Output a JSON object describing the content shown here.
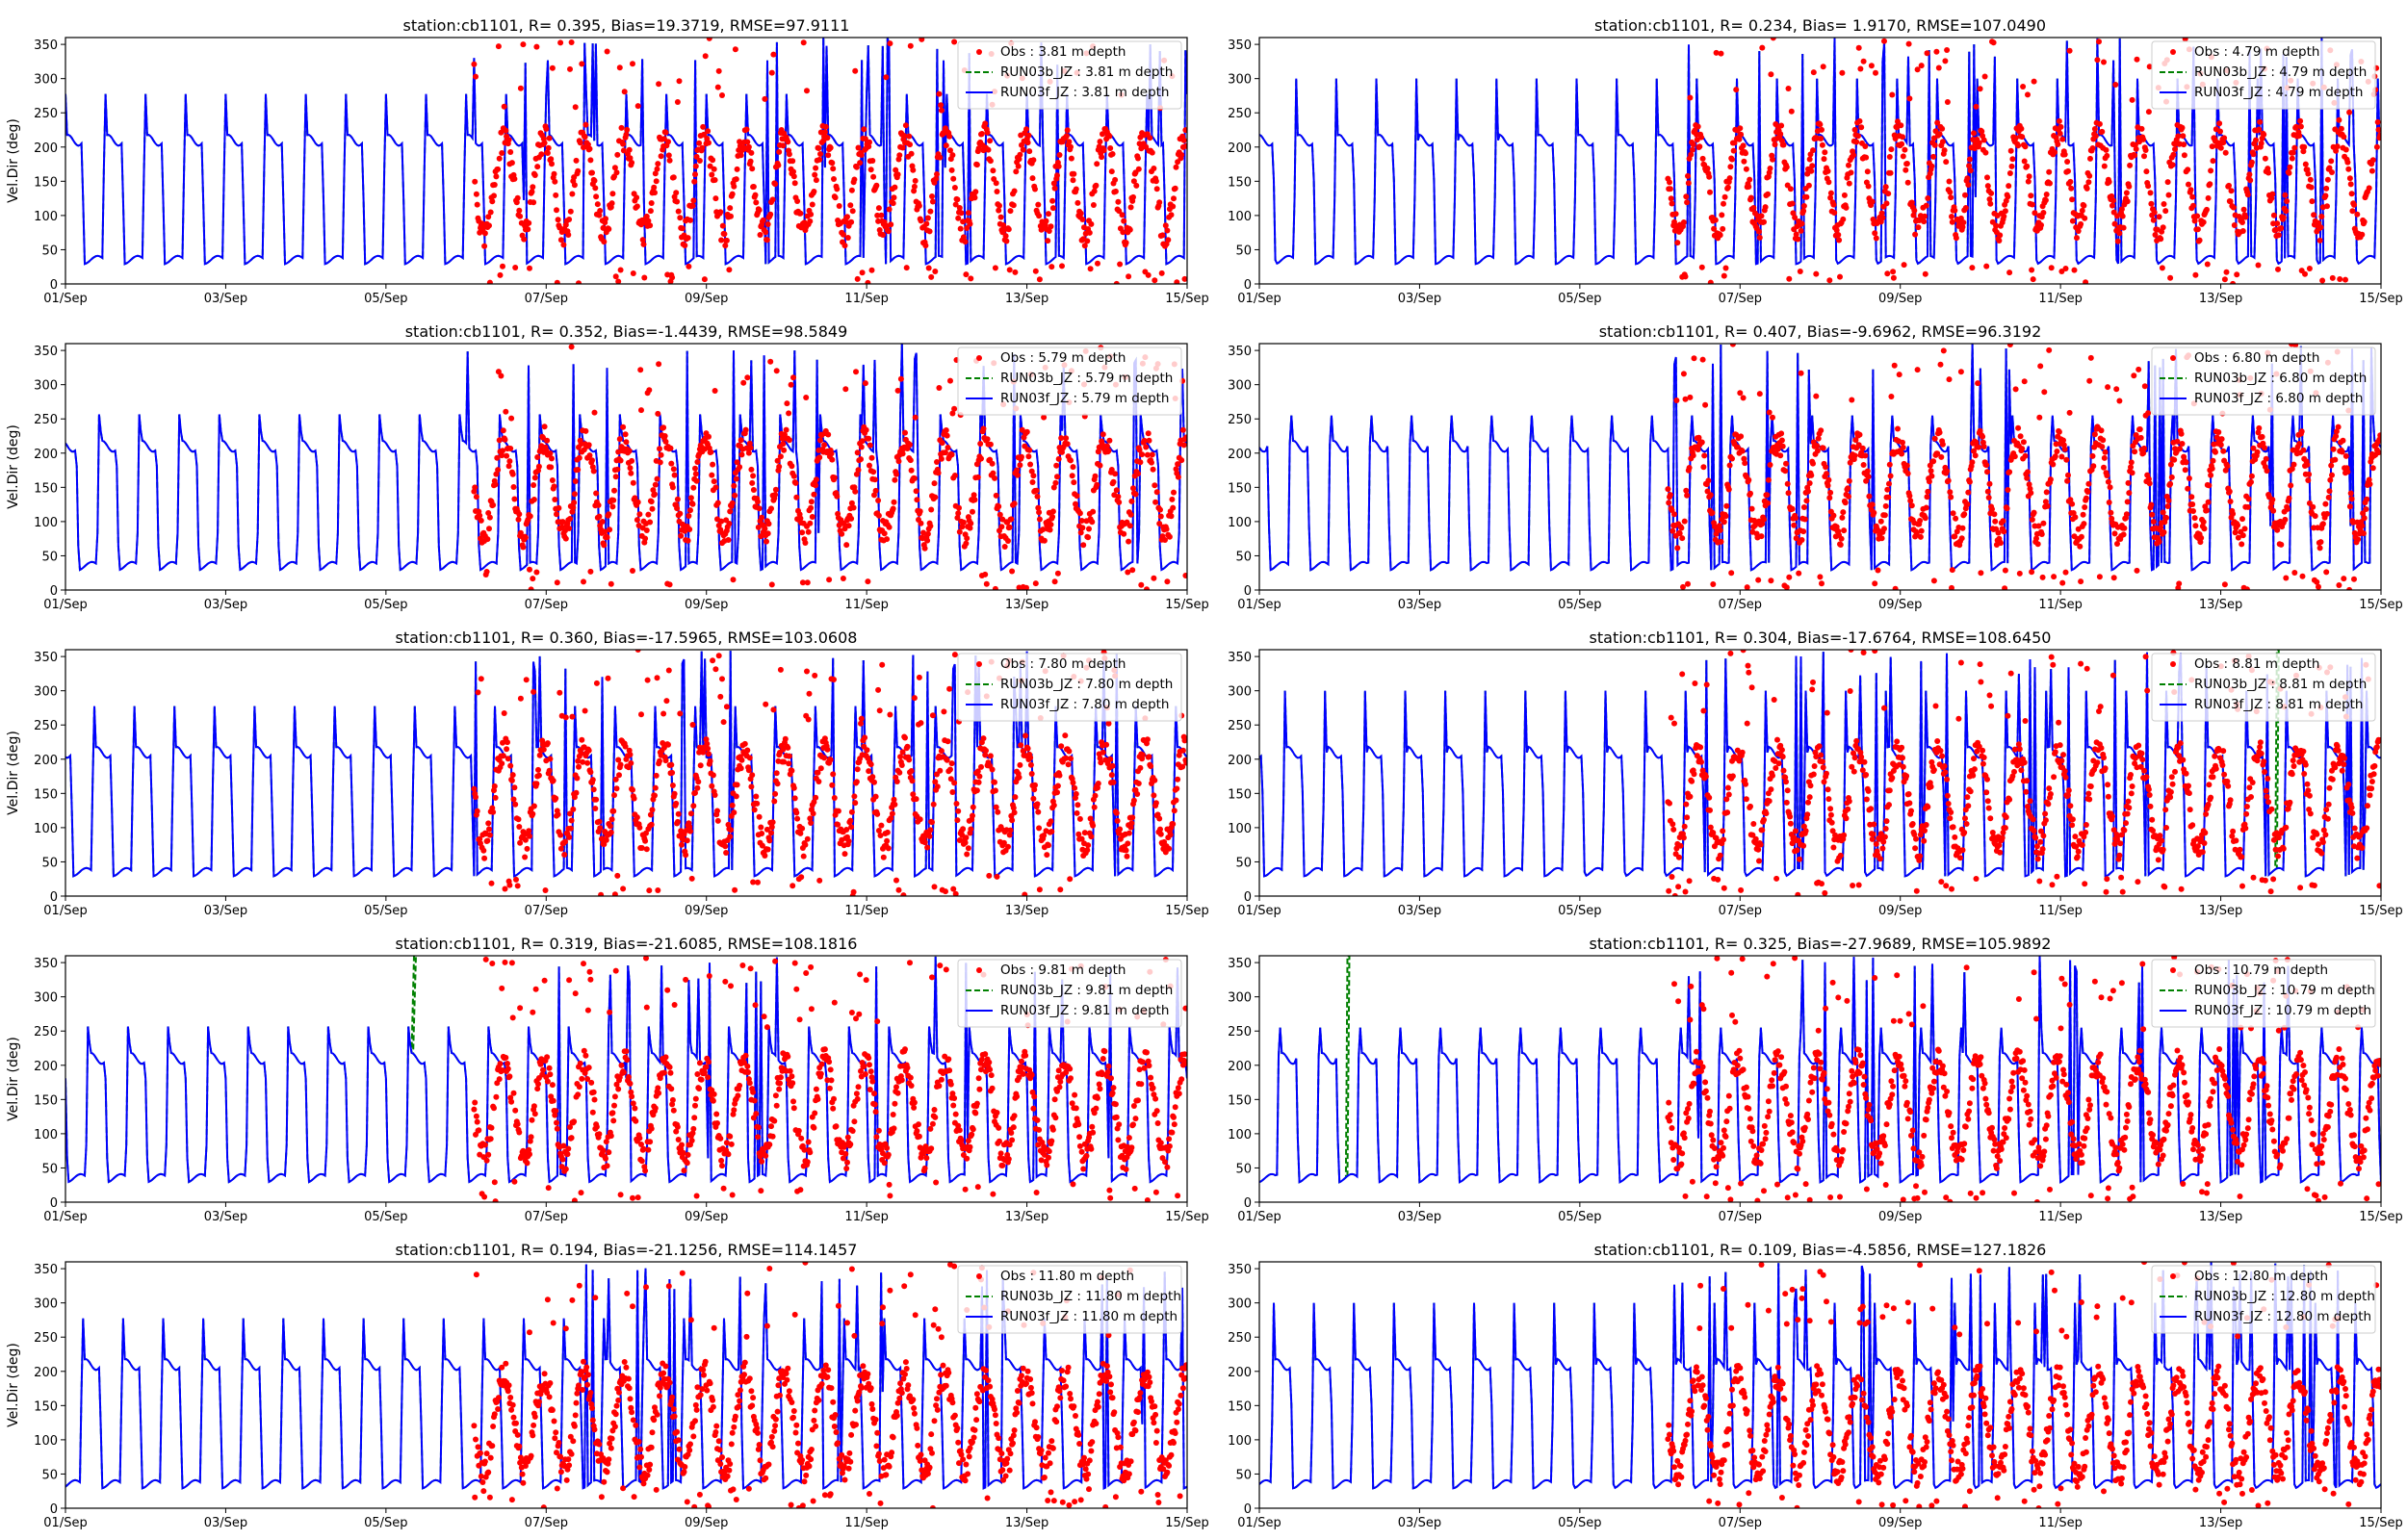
{
  "chart_data": [
    {
      "type": "line",
      "title": "station:cb1101, R= 0.395, Bias=19.3719, RMSE=97.9111",
      "ylabel": "Vel.Dir (deg)",
      "legend": [
        "Obs : 3.81 m depth",
        "RUN03b_JZ : 3.81 m depth",
        "RUN03f_JZ : 3.81 m depth"
      ],
      "seed": 1,
      "obs_center": 145,
      "green_spike_day": null
    },
    {
      "type": "line",
      "title": "station:cb1101, R= 0.234, Bias= 1.9170, RMSE=107.0490",
      "ylabel": "",
      "legend": [
        "Obs : 4.79 m depth",
        "RUN03b_JZ : 4.79 m depth",
        "RUN03f_JZ : 4.79 m depth"
      ],
      "seed": 2,
      "obs_center": 150,
      "green_spike_day": null
    },
    {
      "type": "line",
      "title": "station:cb1101, R= 0.352, Bias=-1.4439, RMSE=98.5849",
      "ylabel": "Vel.Dir (deg)",
      "legend": [
        "Obs : 5.79 m depth",
        "RUN03b_JZ : 5.79 m depth",
        "RUN03f_JZ : 5.79 m depth"
      ],
      "seed": 3,
      "obs_center": 150,
      "green_spike_day": null
    },
    {
      "type": "line",
      "title": "station:cb1101, R= 0.407, Bias=-9.6962, RMSE=96.3192",
      "ylabel": "",
      "legend": [
        "Obs : 6.80 m depth",
        "RUN03b_JZ : 6.80 m depth",
        "RUN03f_JZ : 6.80 m depth"
      ],
      "seed": 4,
      "obs_center": 150,
      "green_spike_day": null
    },
    {
      "type": "line",
      "title": "station:cb1101, R= 0.360, Bias=-17.5965, RMSE=103.0608",
      "ylabel": "Vel.Dir (deg)",
      "legend": [
        "Obs : 7.80 m depth",
        "RUN03b_JZ : 7.80 m depth",
        "RUN03f_JZ : 7.80 m depth"
      ],
      "seed": 5,
      "obs_center": 145,
      "green_spike_day": null
    },
    {
      "type": "line",
      "title": "station:cb1101, R= 0.304, Bias=-17.6764, RMSE=108.6450",
      "ylabel": "",
      "legend": [
        "Obs : 8.81 m depth",
        "RUN03b_JZ : 8.81 m depth",
        "RUN03f_JZ : 8.81 m depth"
      ],
      "seed": 6,
      "obs_center": 140,
      "green_spike_day": 13.7
    },
    {
      "type": "line",
      "title": "station:cb1101, R= 0.319, Bias=-21.6085, RMSE=108.1816",
      "ylabel": "Vel.Dir (deg)",
      "legend": [
        "Obs : 9.81 m depth",
        "RUN03b_JZ : 9.81 m depth",
        "RUN03f_JZ : 9.81 m depth"
      ],
      "seed": 7,
      "obs_center": 135,
      "green_spike_day": 5.35
    },
    {
      "type": "line",
      "title": "station:cb1101, R= 0.325, Bias=-27.9689, RMSE=105.9892",
      "ylabel": "",
      "legend": [
        "Obs : 10.79 m depth",
        "RUN03b_JZ : 10.79 m depth",
        "RUN03f_JZ : 10.79 m depth"
      ],
      "seed": 8,
      "obs_center": 135,
      "green_spike_day": 2.1
    },
    {
      "type": "line",
      "title": "station:cb1101, R= 0.194, Bias=-21.1256, RMSE=114.1457",
      "ylabel": "Vel.Dir (deg)",
      "legend": [
        "Obs : 11.80 m depth",
        "RUN03b_JZ : 11.80 m depth",
        "RUN03f_JZ : 11.80 m depth"
      ],
      "seed": 9,
      "obs_center": 125,
      "green_spike_day": null
    },
    {
      "type": "line",
      "title": "station:cb1101, R= 0.109, Bias=-4.5856, RMSE=127.1826",
      "ylabel": "",
      "legend": [
        "Obs : 12.80 m depth",
        "RUN03b_JZ : 12.80 m depth",
        "RUN03f_JZ : 12.80 m depth"
      ],
      "seed": 10,
      "obs_center": 120,
      "green_spike_day": null
    }
  ],
  "axes": {
    "x_ticks": [
      "01/Sep",
      "03/Sep",
      "05/Sep",
      "07/Sep",
      "09/Sep",
      "11/Sep",
      "13/Sep",
      "15/Sep"
    ],
    "x_range_days": [
      1,
      15
    ],
    "y_ticks": [
      "0",
      "50",
      "100",
      "150",
      "200",
      "250",
      "300",
      "350"
    ],
    "y_range": [
      0,
      360
    ],
    "obs_start_day": 6.1
  },
  "colors": {
    "obs": "#ff0000",
    "run03b": "#008000",
    "run03f": "#0000ff",
    "axis": "#000000",
    "legend_border": "#cccccc"
  }
}
